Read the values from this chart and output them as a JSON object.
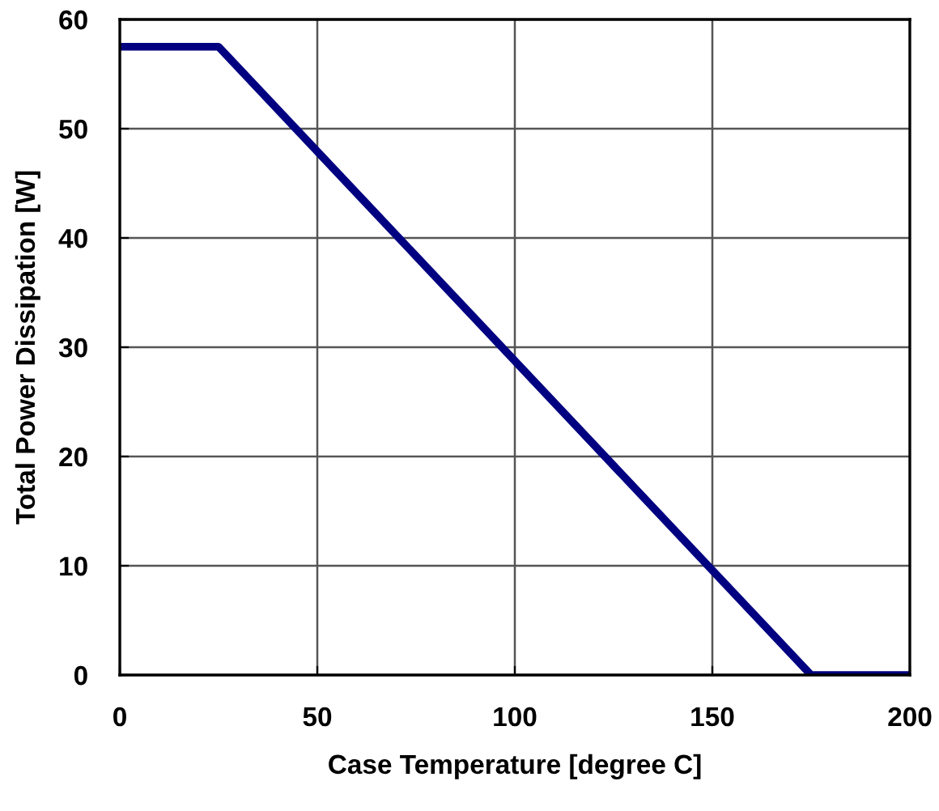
{
  "chart_data": {
    "type": "line",
    "xlabel": "Case Temperature [degree C]",
    "ylabel": "Total Power Dissipation [W]",
    "x": [
      0,
      25,
      175,
      200
    ],
    "series": [
      {
        "color": "#000080",
        "values": [
          57.5,
          57.5,
          0,
          0
        ]
      }
    ],
    "xlim": [
      0,
      200
    ],
    "xticks": [
      0,
      50,
      100,
      150,
      200
    ],
    "ylim": [
      0,
      60
    ],
    "yticks": [
      0,
      10,
      20,
      30,
      40,
      50,
      60
    ],
    "grid": true,
    "marker": "none",
    "line_style": "solid"
  }
}
